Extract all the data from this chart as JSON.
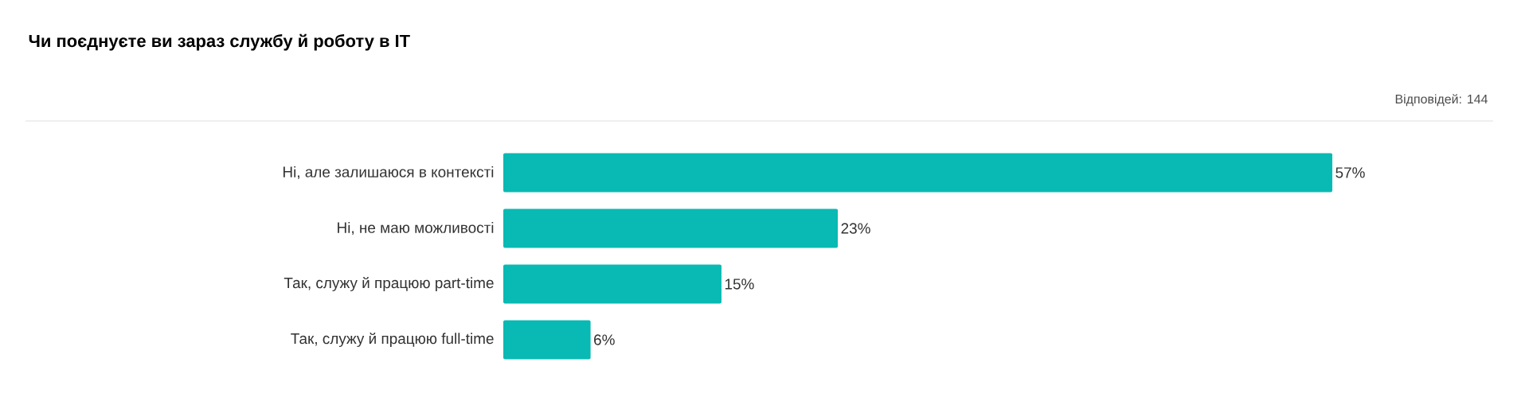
{
  "chart_data": {
    "type": "bar",
    "orientation": "horizontal",
    "title": "Чи поєднуєте ви зараз службу й роботу в IT",
    "annotations": [
      "Відповідей: 144"
    ],
    "categories": [
      "Ні, але залишаюся в контексті",
      "Ні, не маю можливості",
      "Так, служу й працюю part-time",
      "Так, служу й працюю full-time"
    ],
    "values": [
      57,
      23,
      15,
      6
    ],
    "value_labels": [
      "57%",
      "23%",
      "15%",
      "6%"
    ],
    "color": "#08bab3"
  }
}
